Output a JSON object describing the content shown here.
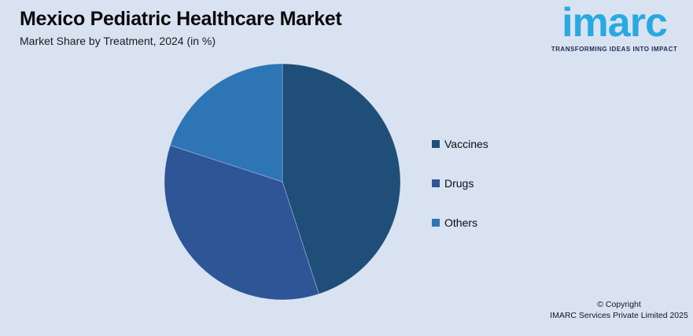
{
  "page": {
    "background": "#D9E2F1"
  },
  "header": {
    "title": "Mexico Pediatric Healthcare Market",
    "subtitle": "Market Share by Treatment, 2024 (in %)"
  },
  "logo": {
    "wordmark": "imarc",
    "tagline": "TRANSFORMING IDEAS INTO IMPACT",
    "brand_color": "#29A9E1",
    "tagline_color": "#1F2A50"
  },
  "chart_data": {
    "type": "pie",
    "title": "Mexico Pediatric Healthcare Market",
    "subtitle": "Market Share by Treatment, 2024 (in %)",
    "categories": [
      "Vaccines",
      "Drugs",
      "Others"
    ],
    "values": [
      45,
      35,
      20
    ],
    "unit": "%",
    "colors": [
      "#1F4E79",
      "#2E5596",
      "#2E75B6"
    ],
    "start_angle_deg": 0,
    "direction": "clockwise",
    "legend_position": "right",
    "data_labels": false
  },
  "legend": {
    "items": [
      {
        "label": "Vaccines",
        "color": "#1F4E79"
      },
      {
        "label": "Drugs",
        "color": "#2E5596"
      },
      {
        "label": "Others",
        "color": "#2E75B6"
      }
    ]
  },
  "footer": {
    "copyright_line1": "© Copyright",
    "copyright_line2": "IMARC Services Private Limited 2025"
  }
}
